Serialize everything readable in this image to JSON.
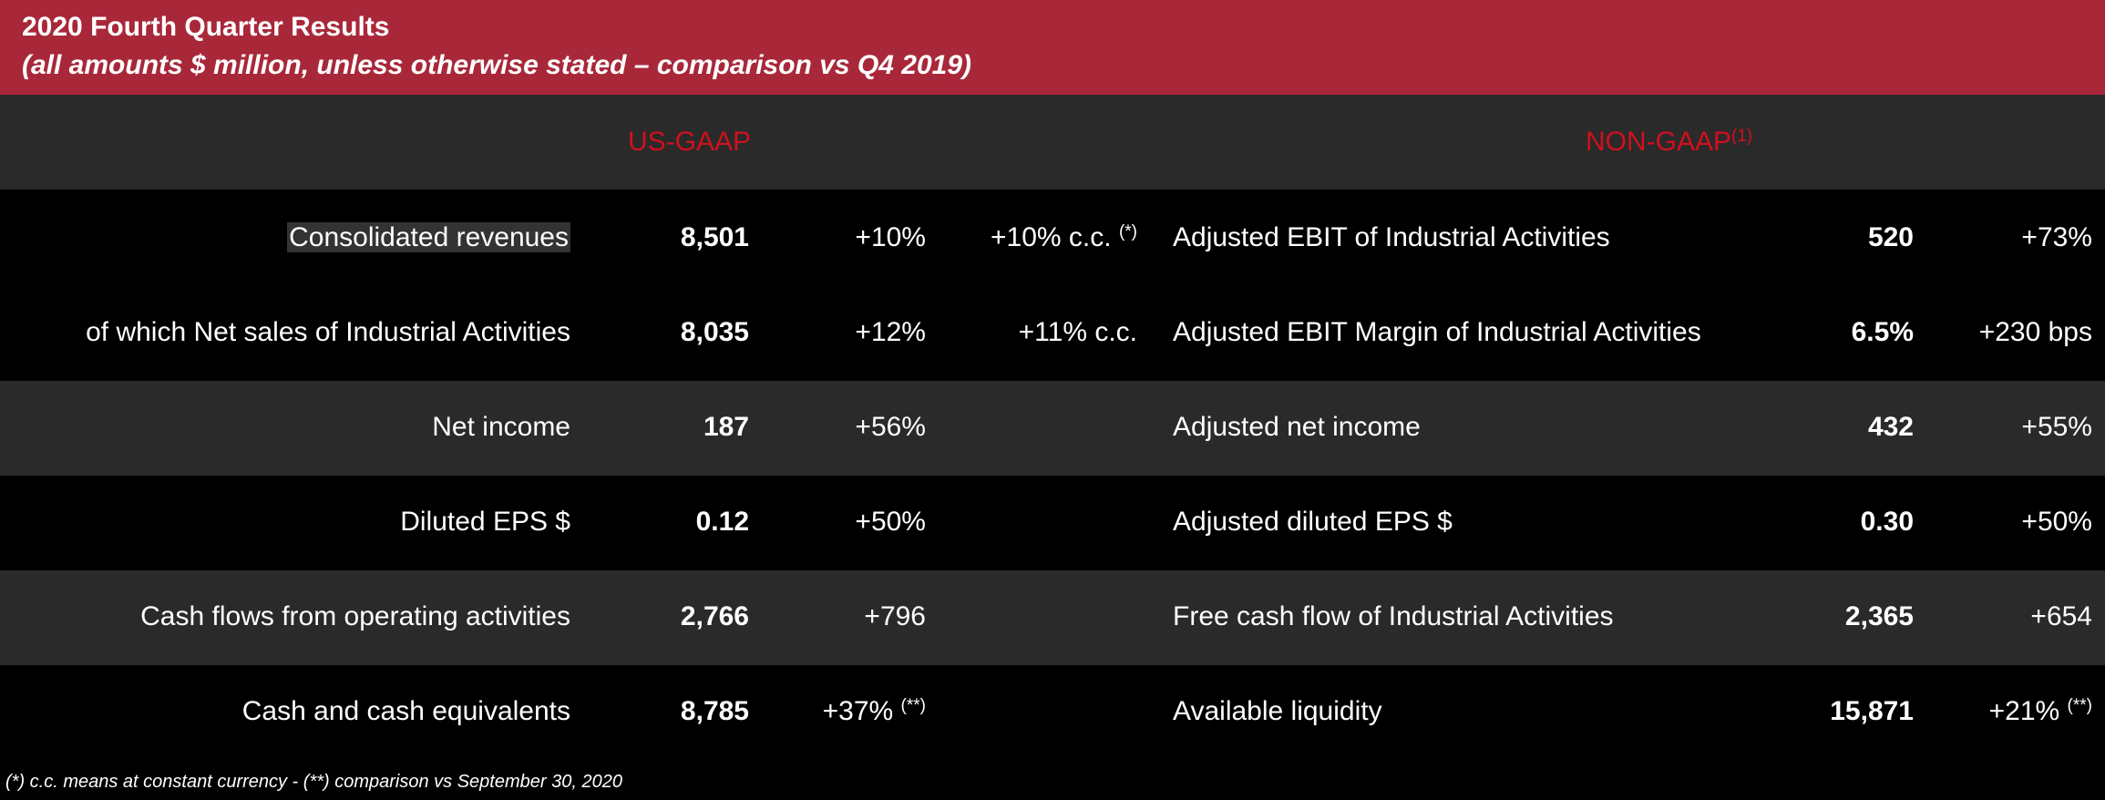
{
  "header": {
    "title": "2020 Fourth Quarter Results",
    "subtitle": "(all amounts $ million, unless otherwise stated – comparison vs Q4 2019)"
  },
  "sections": {
    "usgaap": "US-GAAP",
    "nongaap": "NON-GAAP",
    "nongaap_sup": "(1)"
  },
  "rows": [
    {
      "us_label": "Consolidated revenues",
      "us_value": "8,501",
      "us_change": "+10%",
      "us_change_sup": "",
      "us_cc": "+10% c.c.",
      "us_cc_sup": "(*)",
      "ng_label": "Adjusted EBIT of Industrial Activities",
      "ng_value": "520",
      "ng_change": "+73%",
      "ng_change_sup": ""
    },
    {
      "us_label": "of which Net sales of Industrial Activities",
      "us_value": "8,035",
      "us_change": "+12%",
      "us_change_sup": "",
      "us_cc": "+11% c.c.",
      "us_cc_sup": "",
      "ng_label": "Adjusted EBIT Margin of Industrial Activities",
      "ng_value": "6.5%",
      "ng_change": "+230 bps",
      "ng_change_sup": ""
    },
    {
      "us_label": "Net income",
      "us_value": "187",
      "us_change": "+56%",
      "us_change_sup": "",
      "us_cc": "",
      "us_cc_sup": "",
      "ng_label": "Adjusted net income",
      "ng_value": "432",
      "ng_change": "+55%",
      "ng_change_sup": ""
    },
    {
      "us_label": "Diluted EPS $",
      "us_value": "0.12",
      "us_change": "+50%",
      "us_change_sup": "",
      "us_cc": "",
      "us_cc_sup": "",
      "ng_label": "Adjusted diluted EPS $",
      "ng_value": "0.30",
      "ng_change": "+50%",
      "ng_change_sup": ""
    },
    {
      "us_label": "Cash flows from operating activities",
      "us_value": "2,766",
      "us_change": "+796",
      "us_change_sup": "",
      "us_cc": "",
      "us_cc_sup": "",
      "ng_label": "Free cash flow of Industrial Activities",
      "ng_value": "2,365",
      "ng_change": "+654",
      "ng_change_sup": ""
    },
    {
      "us_label": "Cash and cash equivalents",
      "us_value": "8,785",
      "us_change": "+37%",
      "us_change_sup": "(**)",
      "us_cc": "",
      "us_cc_sup": "",
      "ng_label": "Available liquidity",
      "ng_value": "15,871",
      "ng_change": "+21%",
      "ng_change_sup": "(**)"
    }
  ],
  "footnote": "(*) c.c. means at constant currency  -  (**) comparison vs September 30, 2020"
}
